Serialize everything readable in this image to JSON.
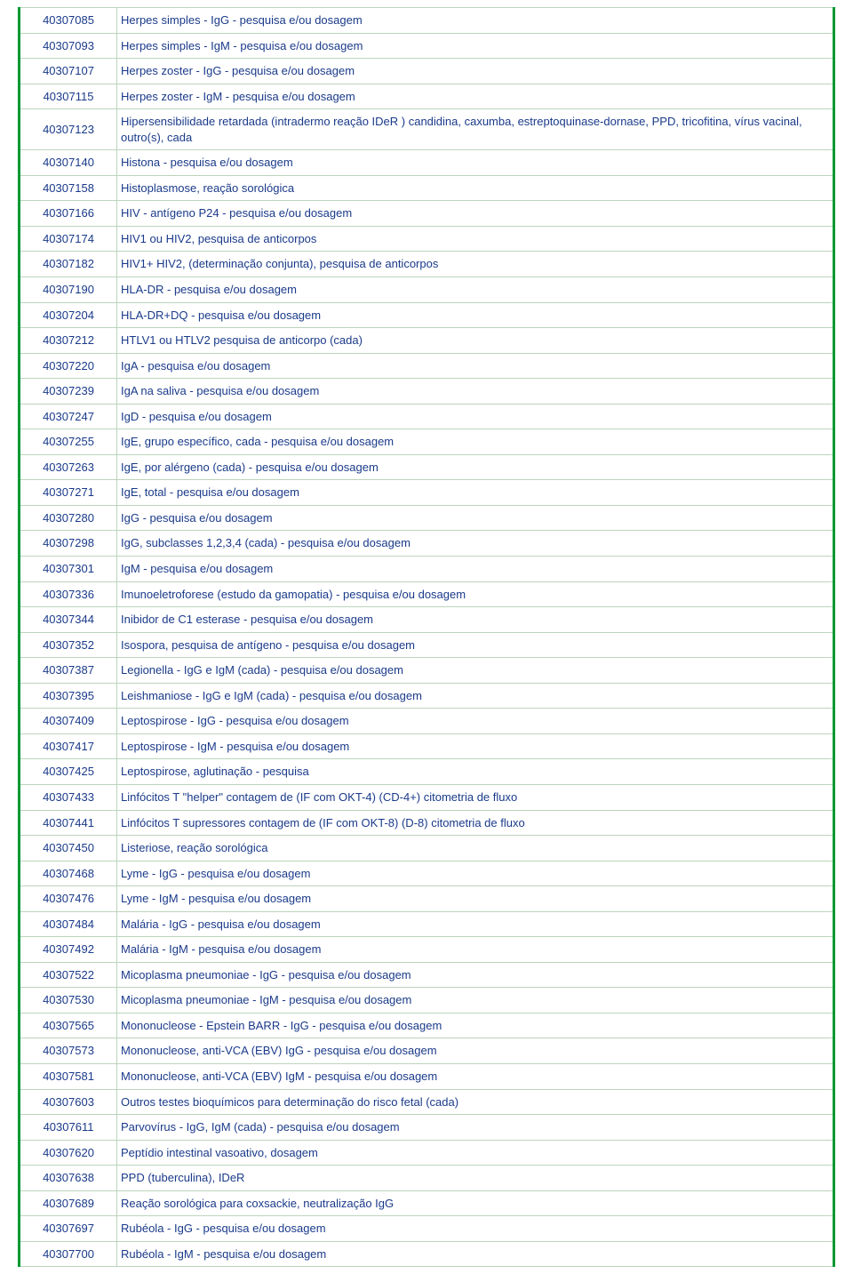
{
  "table": {
    "columns": [
      "code",
      "description"
    ],
    "border_color": "#009933",
    "cell_border_color": "#bcd4bc",
    "text_color": "#1a3a8a",
    "background_color": "#ffffff",
    "font_size": 13,
    "code_column_width": 110,
    "rows": [
      {
        "code": "40307085",
        "description": "Herpes simples - IgG - pesquisa e/ou dosagem"
      },
      {
        "code": "40307093",
        "description": "Herpes simples - IgM - pesquisa e/ou dosagem"
      },
      {
        "code": "40307107",
        "description": "Herpes zoster - IgG - pesquisa e/ou dosagem"
      },
      {
        "code": "40307115",
        "description": "Herpes zoster - IgM - pesquisa e/ou dosagem"
      },
      {
        "code": "40307123",
        "description": "Hipersensibilidade retardada (intradermo reação IDeR ) candidina, caxumba, estreptoquinase-dornase, PPD, tricofitina, vírus vacinal, outro(s), cada"
      },
      {
        "code": "40307140",
        "description": "Histona - pesquisa e/ou dosagem"
      },
      {
        "code": "40307158",
        "description": "Histoplasmose, reação sorológica"
      },
      {
        "code": "40307166",
        "description": "HIV - antígeno P24 - pesquisa e/ou dosagem"
      },
      {
        "code": "40307174",
        "description": "HIV1 ou HIV2, pesquisa de anticorpos"
      },
      {
        "code": "40307182",
        "description": "HIV1+ HIV2, (determinação conjunta), pesquisa de anticorpos"
      },
      {
        "code": "40307190",
        "description": "HLA-DR - pesquisa e/ou dosagem"
      },
      {
        "code": "40307204",
        "description": "HLA-DR+DQ - pesquisa e/ou dosagem"
      },
      {
        "code": "40307212",
        "description": "HTLV1 ou HTLV2 pesquisa de anticorpo (cada)"
      },
      {
        "code": "40307220",
        "description": "IgA - pesquisa e/ou dosagem"
      },
      {
        "code": "40307239",
        "description": "IgA na saliva - pesquisa e/ou dosagem"
      },
      {
        "code": "40307247",
        "description": "IgD - pesquisa e/ou dosagem"
      },
      {
        "code": "40307255",
        "description": "IgE, grupo específico, cada - pesquisa e/ou dosagem"
      },
      {
        "code": "40307263",
        "description": "IgE, por alérgeno (cada) - pesquisa e/ou dosagem"
      },
      {
        "code": "40307271",
        "description": "IgE, total - pesquisa e/ou dosagem"
      },
      {
        "code": "40307280",
        "description": "IgG - pesquisa e/ou dosagem"
      },
      {
        "code": "40307298",
        "description": "IgG, subclasses 1,2,3,4 (cada) - pesquisa e/ou dosagem"
      },
      {
        "code": "40307301",
        "description": "IgM - pesquisa e/ou dosagem"
      },
      {
        "code": "40307336",
        "description": "Imunoeletroforese (estudo da gamopatia) - pesquisa e/ou dosagem"
      },
      {
        "code": "40307344",
        "description": "Inibidor de C1 esterase - pesquisa e/ou dosagem"
      },
      {
        "code": "40307352",
        "description": "Isospora, pesquisa de antígeno - pesquisa e/ou dosagem"
      },
      {
        "code": "40307387",
        "description": "Legionella - IgG e IgM (cada) - pesquisa e/ou dosagem"
      },
      {
        "code": "40307395",
        "description": "Leishmaniose - IgG e IgM (cada) - pesquisa e/ou dosagem"
      },
      {
        "code": "40307409",
        "description": "Leptospirose - IgG - pesquisa e/ou dosagem"
      },
      {
        "code": "40307417",
        "description": "Leptospirose - IgM - pesquisa e/ou dosagem"
      },
      {
        "code": "40307425",
        "description": "Leptospirose, aglutinação - pesquisa"
      },
      {
        "code": "40307433",
        "description": "Linfócitos T \"helper\" contagem de (IF com OKT-4) (CD-4+) citometria de fluxo"
      },
      {
        "code": "40307441",
        "description": "Linfócitos T supressores contagem de (IF com OKT-8) (D-8) citometria de fluxo"
      },
      {
        "code": "40307450",
        "description": "Listeriose, reação sorológica"
      },
      {
        "code": "40307468",
        "description": "Lyme - IgG - pesquisa e/ou dosagem"
      },
      {
        "code": "40307476",
        "description": "Lyme - IgM - pesquisa e/ou dosagem"
      },
      {
        "code": "40307484",
        "description": "Malária - IgG - pesquisa e/ou dosagem"
      },
      {
        "code": "40307492",
        "description": "Malária - IgM - pesquisa e/ou dosagem"
      },
      {
        "code": "40307522",
        "description": "Micoplasma pneumoniae - IgG - pesquisa e/ou dosagem"
      },
      {
        "code": "40307530",
        "description": "Micoplasma pneumoniae - IgM - pesquisa e/ou dosagem"
      },
      {
        "code": "40307565",
        "description": "Mononucleose - Epstein BARR - IgG - pesquisa e/ou dosagem"
      },
      {
        "code": "40307573",
        "description": "Mononucleose, anti-VCA (EBV) IgG - pesquisa e/ou dosagem"
      },
      {
        "code": "40307581",
        "description": "Mononucleose, anti-VCA (EBV) IgM - pesquisa e/ou dosagem"
      },
      {
        "code": "40307603",
        "description": "Outros testes bioquímicos para determinação do risco fetal (cada)"
      },
      {
        "code": "40307611",
        "description": "Parvovírus - IgG, IgM (cada) - pesquisa e/ou dosagem"
      },
      {
        "code": "40307620",
        "description": "Peptídio intestinal vasoativo, dosagem"
      },
      {
        "code": "40307638",
        "description": "PPD (tuberculina), IDeR"
      },
      {
        "code": "40307689",
        "description": "Reação sorológica para coxsackie, neutralização IgG"
      },
      {
        "code": "40307697",
        "description": "Rubéola - IgG - pesquisa e/ou dosagem"
      },
      {
        "code": "40307700",
        "description": "Rubéola - IgM - pesquisa e/ou dosagem"
      }
    ]
  }
}
